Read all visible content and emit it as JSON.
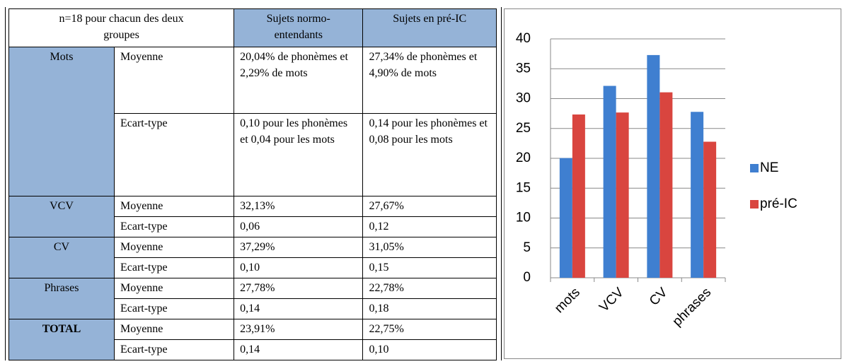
{
  "table": {
    "header": [
      "n=18 pour chacun des deux groupes",
      "Sujets normo-entendants",
      "Sujets en pré-IC"
    ],
    "rows": [
      {
        "group": "Mots",
        "lines": [
          [
            "Moyenne",
            "20,04% de phonèmes et 2,29% de mots",
            "27,34% de phonèmes et 4,90% de mots"
          ],
          [
            "Ecart-type",
            "0,10 pour les phonèmes et 0,04 pour les mots",
            "0,14 pour les phonèmes et 0,08 pour les mots"
          ]
        ]
      },
      {
        "group": "VCV",
        "lines": [
          [
            "Moyenne",
            "32,13%",
            "27,67%"
          ],
          [
            "Ecart-type",
            "0,06",
            "0,12"
          ]
        ]
      },
      {
        "group": "CV",
        "lines": [
          [
            "Moyenne",
            "37,29%",
            "31,05%"
          ],
          [
            "Ecart-type",
            "0,10",
            "0,15"
          ]
        ]
      },
      {
        "group": "Phrases",
        "lines": [
          [
            "Moyenne",
            "27,78%",
            "22,78%"
          ],
          [
            "Ecart-type",
            "0,14",
            "0,18"
          ]
        ]
      },
      {
        "group": "TOTAL",
        "lines": [
          [
            "Moyenne",
            "23,91%",
            "22,75%"
          ],
          [
            "Ecart-type",
            "0,14",
            "0,10"
          ]
        ]
      }
    ]
  },
  "chart_data": {
    "type": "bar",
    "categories": [
      "mots",
      "VCV",
      "CV",
      "phrases"
    ],
    "series": [
      {
        "name": "NE",
        "color": "#3f7fd0",
        "values": [
          20.04,
          32.13,
          37.29,
          27.78
        ]
      },
      {
        "name": "pré-IC",
        "color": "#d9453f",
        "values": [
          27.34,
          27.67,
          31.05,
          22.78
        ]
      }
    ],
    "ylim": [
      0,
      40
    ],
    "yticks": [
      0,
      5,
      10,
      15,
      20,
      25,
      30,
      35,
      40
    ],
    "grid": true,
    "legend": "right"
  }
}
